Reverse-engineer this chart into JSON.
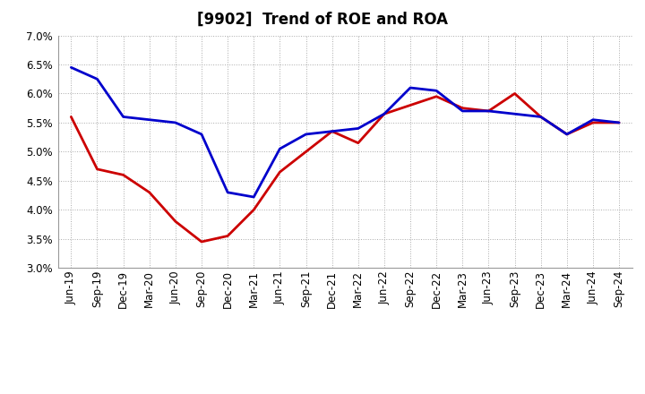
{
  "title": "[9902]  Trend of ROE and ROA",
  "x_labels": [
    "Jun-19",
    "Sep-19",
    "Dec-19",
    "Mar-20",
    "Jun-20",
    "Sep-20",
    "Dec-20",
    "Mar-21",
    "Jun-21",
    "Sep-21",
    "Dec-21",
    "Mar-22",
    "Jun-22",
    "Sep-22",
    "Dec-22",
    "Mar-23",
    "Jun-23",
    "Sep-23",
    "Dec-23",
    "Mar-24",
    "Jun-24",
    "Sep-24"
  ],
  "roe_values": [
    5.6,
    4.7,
    4.6,
    4.3,
    3.8,
    3.45,
    3.55,
    4.0,
    4.65,
    5.0,
    5.35,
    5.15,
    5.65,
    5.8,
    5.95,
    5.75,
    5.7,
    6.0,
    5.6,
    5.3,
    5.5,
    5.5
  ],
  "roa_values": [
    6.45,
    6.25,
    5.6,
    5.55,
    5.5,
    5.3,
    4.3,
    4.22,
    5.05,
    5.3,
    5.35,
    5.4,
    5.65,
    6.1,
    6.05,
    5.7,
    5.7,
    5.65,
    5.6,
    5.3,
    5.55,
    5.5
  ],
  "roe_color": "#cc0000",
  "roa_color": "#0000cc",
  "ylim": [
    3.0,
    7.0
  ],
  "yticks": [
    3.0,
    3.5,
    4.0,
    4.5,
    5.0,
    5.5,
    6.0,
    6.5,
    7.0
  ],
  "bg_color": "#ffffff",
  "grid_color": "#aaaaaa",
  "line_width": 2.0,
  "title_fontsize": 12,
  "tick_fontsize": 8.5,
  "legend_fontsize": 10
}
